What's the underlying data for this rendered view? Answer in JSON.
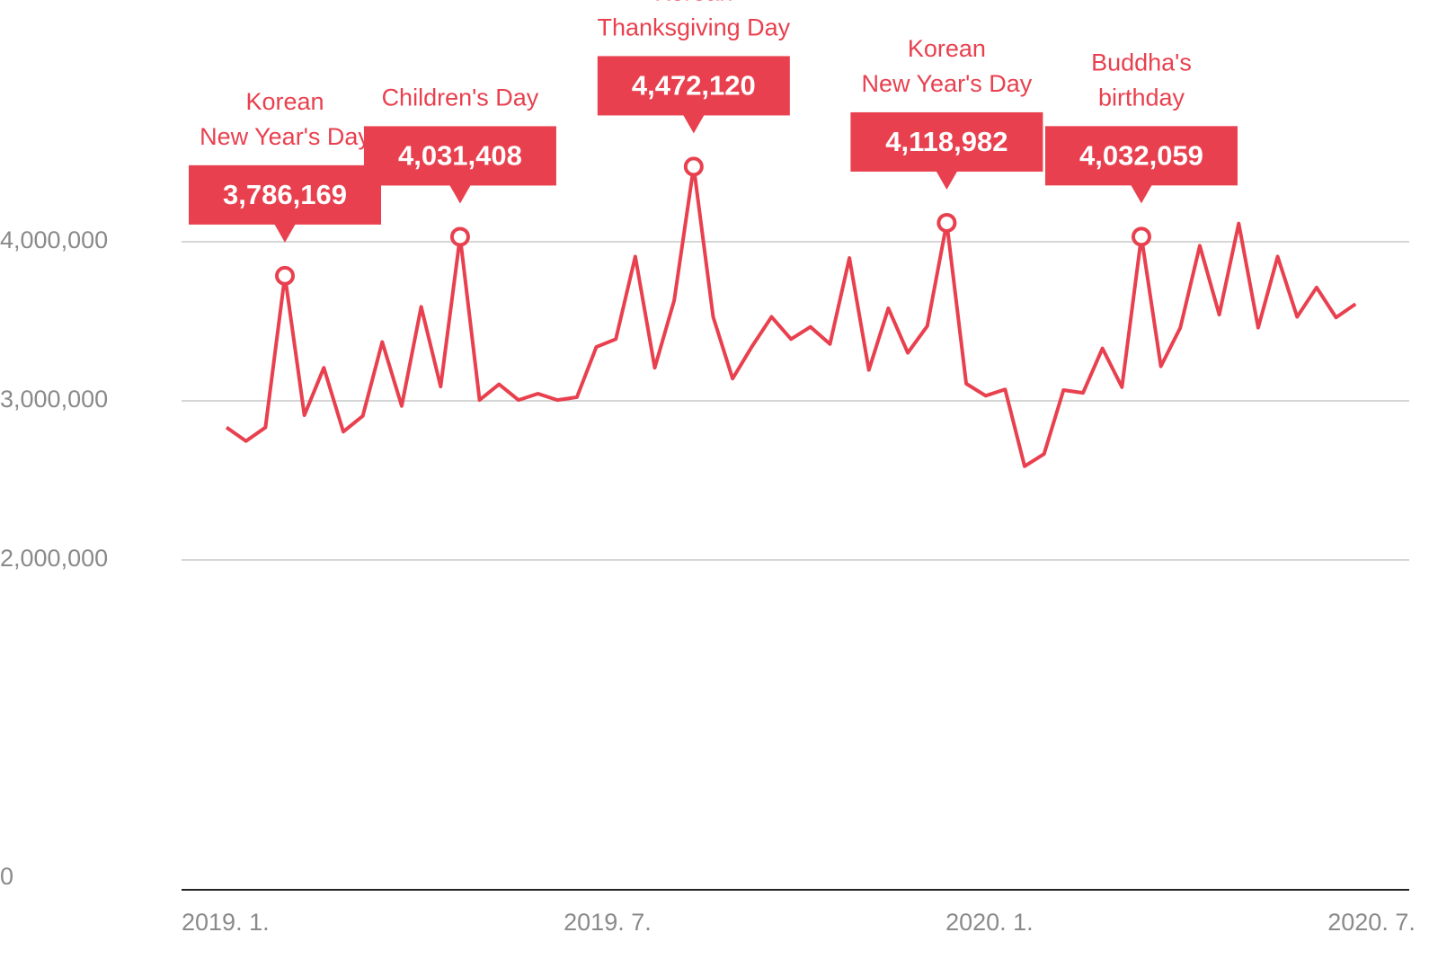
{
  "chart_data": {
    "type": "line",
    "x": [
      0,
      1,
      2,
      3,
      4,
      5,
      6,
      7,
      8,
      9,
      10,
      11,
      12,
      13,
      14,
      15,
      16,
      17,
      18,
      19,
      20,
      21,
      22,
      23,
      24,
      25,
      26,
      27,
      28,
      29,
      30,
      31,
      32,
      33,
      34,
      35,
      36,
      37,
      38,
      39,
      40,
      41,
      42,
      43,
      44,
      45,
      46,
      47,
      48,
      49,
      50,
      51,
      52,
      53,
      54,
      55,
      56,
      57,
      58
    ],
    "series": [
      {
        "color": "#e8404e",
        "values": [
          2833000,
          2747000,
          2833000,
          3786169,
          2910000,
          3208000,
          2806000,
          2905000,
          3370000,
          2968000,
          3591000,
          3090000,
          4031408,
          3005000,
          3104000,
          3005000,
          3045000,
          3005000,
          3023000,
          3339000,
          3388000,
          3907000,
          3208000,
          3632000,
          4472120,
          3528000,
          3140000,
          3343000,
          3528000,
          3388000,
          3465000,
          3357000,
          3898000,
          3194000,
          3582000,
          3302000,
          3470000,
          4118982,
          3108000,
          3032000,
          3072000,
          2589000,
          2666000,
          3068000,
          3050000,
          3330000,
          3086000,
          4032059,
          3217000,
          3460000,
          3975000,
          3542000,
          4115000,
          3460000,
          3907000,
          3528000,
          3713000,
          3524000,
          3609000
        ],
        "value_labels": [
          null,
          null,
          null,
          "3,786,169",
          null,
          null,
          null,
          null,
          null,
          null,
          null,
          null,
          "4,031,408",
          null,
          null,
          null,
          null,
          null,
          null,
          null,
          null,
          null,
          null,
          null,
          "4,472,120",
          null,
          null,
          null,
          null,
          null,
          null,
          null,
          null,
          null,
          null,
          null,
          null,
          "4,118,982",
          null,
          null,
          null,
          null,
          null,
          null,
          null,
          null,
          null,
          "4,032,059",
          null,
          null,
          null,
          null,
          null,
          null,
          null,
          null,
          null,
          null,
          null
        ],
        "annotations": [
          null,
          null,
          null,
          [
            "Korean",
            "New Year's Day"
          ],
          null,
          null,
          null,
          null,
          null,
          null,
          null,
          null,
          [
            "Children's Day"
          ],
          null,
          null,
          null,
          null,
          null,
          null,
          null,
          null,
          null,
          null,
          null,
          [
            "Korean",
            "Thanksgiving Day"
          ],
          null,
          null,
          null,
          null,
          null,
          null,
          null,
          null,
          null,
          null,
          null,
          null,
          [
            "Korean",
            "New Year's Day"
          ],
          null,
          null,
          null,
          null,
          null,
          null,
          null,
          null,
          null,
          [
            "Buddha's",
            "birthday"
          ],
          null,
          null,
          null,
          null,
          null,
          null,
          null,
          null,
          null,
          null,
          null
        ]
      }
    ],
    "xlim": [
      -2.31,
      60.76
    ],
    "xticks": [
      {
        "value": -2.31,
        "label": "2019. 1."
      },
      {
        "value": 17.32,
        "label": "2019. 7."
      },
      {
        "value": 36.94,
        "label": "2020. 1."
      },
      {
        "value": 56.57,
        "label": "2020. 7."
      }
    ],
    "ylim": [
      0,
      5000000
    ],
    "yticks": [
      0,
      {
        "value": 2000000,
        "label": "2,000,000"
      },
      {
        "value": 3000000,
        "label": "3,000,000"
      },
      {
        "value": 4000000,
        "label": "4,000,000"
      }
    ],
    "grid": true
  }
}
